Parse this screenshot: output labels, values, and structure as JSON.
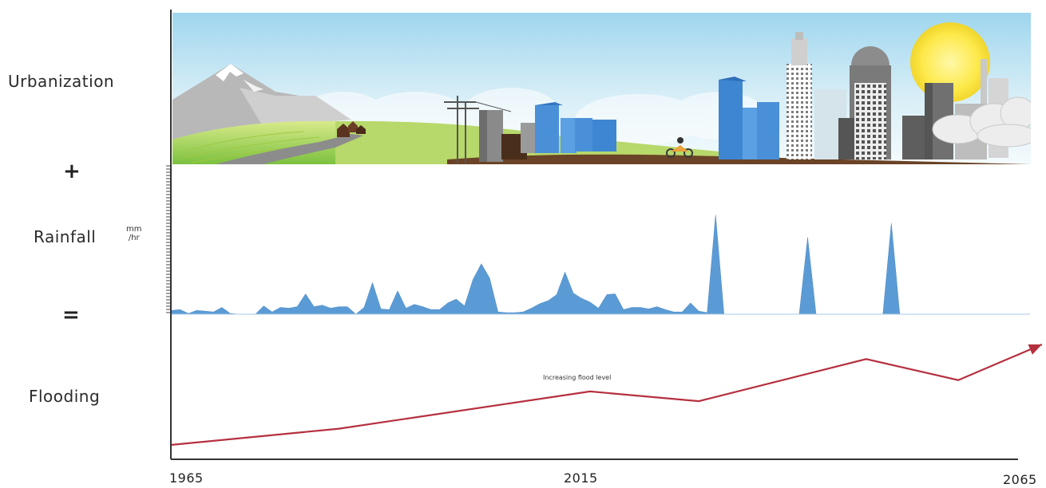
{
  "labels": {
    "urbanization": "Urbanization",
    "plus": "+",
    "rainfall": "Rainfall",
    "rainfall_unit_top": "mm",
    "rainfall_unit_bottom": "/hr",
    "equals": "=",
    "flooding": "Flooding"
  },
  "annotation": "Increasing flood level",
  "x_axis": {
    "ticks": [
      "1965",
      "2015",
      "2065"
    ]
  },
  "colors": {
    "rainfall": "#5b9bd5",
    "flood_line": "#b5303f",
    "axis": "#333333"
  },
  "scene": {
    "sky": "light-blue",
    "elements": [
      "mountain-icon",
      "farm-field",
      "house-icon",
      "power-pole-icon",
      "skyscraper-icon",
      "motorcycle-icon",
      "sun-icon",
      "cloud-icon"
    ]
  },
  "chart_data": [
    {
      "type": "area",
      "name": "rainfall",
      "x": [
        1965,
        1966,
        1967,
        1968,
        1969,
        1970,
        1971,
        1972,
        1973,
        1974,
        1975,
        1976,
        1977,
        1978,
        1979,
        1980,
        1981,
        1982,
        1983,
        1984,
        1985,
        1986,
        1987,
        1988,
        1989,
        1990,
        1991,
        1992,
        1993,
        1994,
        1995,
        1996,
        1997,
        1998,
        1999,
        2000,
        2001,
        2002,
        2003,
        2004,
        2005,
        2006,
        2007,
        2008,
        2009,
        2010,
        2011,
        2012,
        2013,
        2014,
        2015,
        2016,
        2017,
        2018,
        2019,
        2020,
        2021,
        2022,
        2023,
        2024,
        2025,
        2026,
        2027,
        2028,
        2029,
        2030,
        2031,
        2032,
        2033,
        2034,
        2035,
        2036,
        2037,
        2038,
        2039,
        2040,
        2041,
        2042,
        2043,
        2044,
        2045,
        2046,
        2047,
        2048,
        2049,
        2050,
        2051,
        2052,
        2053,
        2054,
        2055,
        2056,
        2057,
        2058,
        2059,
        2060,
        2061,
        2062,
        2063,
        2064,
        2065
      ],
      "values": [
        0.5,
        0.6,
        0.1,
        0.5,
        0.4,
        0.3,
        0.9,
        0.1,
        0,
        0,
        0,
        1.1,
        0.3,
        0.9,
        0.8,
        1,
        2.7,
        1,
        1.2,
        0.8,
        1,
        1,
        0,
        0.9,
        4.2,
        0.7,
        0.6,
        3.1,
        0.8,
        1.3,
        1,
        0.6,
        0.6,
        1.5,
        2,
        1.1,
        4.6,
        6.7,
        4.8,
        0.3,
        0.2,
        0.2,
        0.3,
        0.8,
        1.4,
        1.8,
        2.6,
        5.6,
        2.8,
        2.1,
        1.6,
        0.8,
        2.6,
        2.7,
        0.6,
        0.9,
        0.9,
        0.7,
        1,
        0.6,
        0.3,
        0.3,
        1.5,
        0.4,
        0.2,
        13.2,
        0,
        0,
        0,
        0,
        0,
        0,
        0,
        0,
        0,
        0,
        10.2,
        0,
        0,
        0,
        0,
        0,
        0,
        0,
        0,
        0,
        12.1,
        0,
        0,
        0,
        0,
        0,
        0,
        0,
        0,
        0,
        0,
        0,
        0,
        0,
        0
      ],
      "ylim": [
        0,
        14
      ]
    },
    {
      "type": "line",
      "name": "flooding",
      "x": [
        1965,
        1985,
        2015,
        2028,
        2048,
        2059,
        2069
      ],
      "values": [
        1,
        2,
        4.3,
        3.7,
        6.3,
        5,
        7.2
      ]
    }
  ]
}
